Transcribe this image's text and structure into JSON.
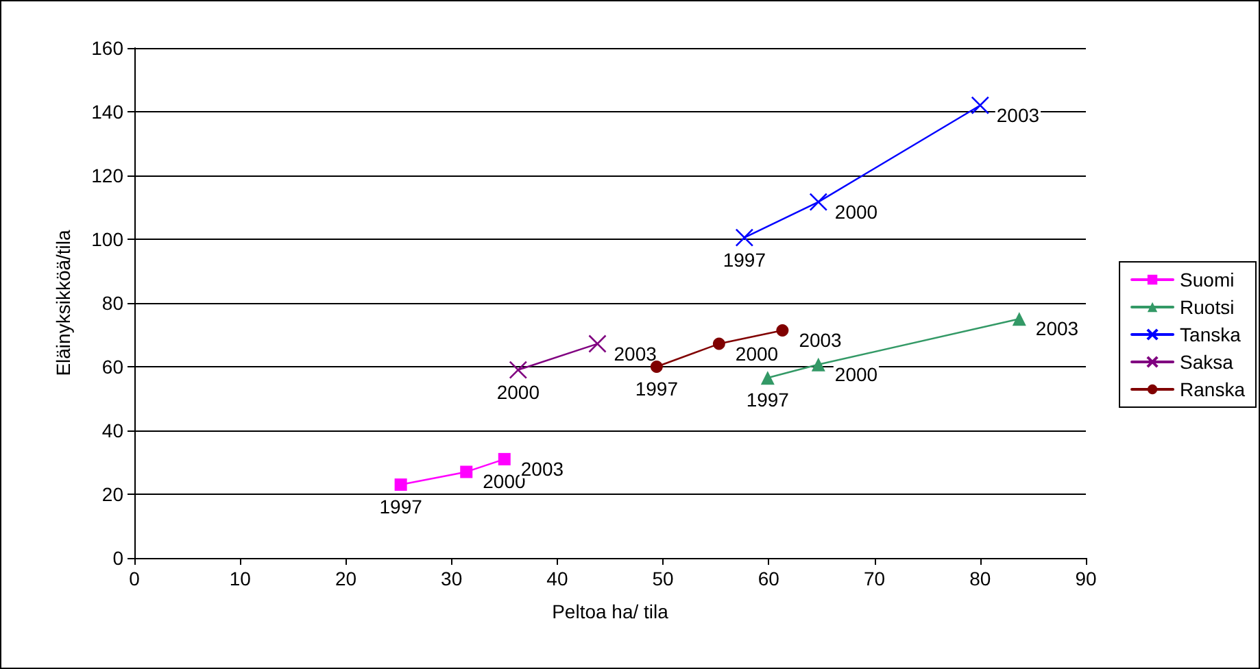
{
  "chart_data": {
    "type": "line",
    "xlabel": "Peltoa ha/ tila",
    "ylabel": "Eläinyksikköä/tila",
    "xlim": [
      0,
      90
    ],
    "xticks": [
      0,
      10,
      20,
      30,
      40,
      50,
      60,
      70,
      80,
      90
    ],
    "ylim": [
      0,
      160
    ],
    "yticks": [
      0,
      20,
      40,
      60,
      80,
      100,
      120,
      140,
      160
    ],
    "grid": "y",
    "legend": "right",
    "line_style": "solid",
    "series": [
      {
        "name": "Suomi",
        "color": "#ff00ff",
        "marker": "square",
        "x": [
          25.2,
          31.4,
          35.0
        ],
        "values": [
          23,
          27,
          31
        ]
      },
      {
        "name": "Ruotsi",
        "color": "#339966",
        "marker": "triangle",
        "x": [
          59.9,
          64.7,
          83.7
        ],
        "values": [
          56.5,
          60.7,
          75
        ]
      },
      {
        "name": "Tanska",
        "color": "#0000ff",
        "marker": "cross",
        "x": [
          57.7,
          64.7,
          80.0
        ],
        "values": [
          100.5,
          111.7,
          142
        ]
      },
      {
        "name": "Saksa",
        "color": "#800080",
        "marker": "cross",
        "x": [
          36.3,
          43.8
        ],
        "values": [
          59,
          67.2
        ]
      },
      {
        "name": "Ranska",
        "color": "#800000",
        "marker": "circle",
        "x": [
          49.4,
          55.3,
          61.3
        ],
        "values": [
          60,
          67.2,
          71.4
        ]
      }
    ],
    "annotations": [
      {
        "text": "1997",
        "x": 25.2,
        "y": 23
      },
      {
        "text": "2000",
        "x": 31.4,
        "y": 27
      },
      {
        "text": "2003",
        "x": 35.0,
        "y": 31
      },
      {
        "text": "1997",
        "x": 59.9,
        "y": 56.5
      },
      {
        "text": "2000",
        "x": 64.7,
        "y": 60.7
      },
      {
        "text": "2003",
        "x": 83.7,
        "y": 75
      },
      {
        "text": "1997",
        "x": 57.7,
        "y": 100.5
      },
      {
        "text": "2000",
        "x": 64.7,
        "y": 111.7
      },
      {
        "text": "2003",
        "x": 80.0,
        "y": 142
      },
      {
        "text": "2000",
        "x": 36.3,
        "y": 59
      },
      {
        "text": "2003",
        "x": 43.8,
        "y": 67.2
      },
      {
        "text": "1997",
        "x": 49.4,
        "y": 60
      },
      {
        "text": "2000",
        "x": 55.3,
        "y": 67.2
      },
      {
        "text": "2003",
        "x": 61.3,
        "y": 71.4
      }
    ]
  }
}
